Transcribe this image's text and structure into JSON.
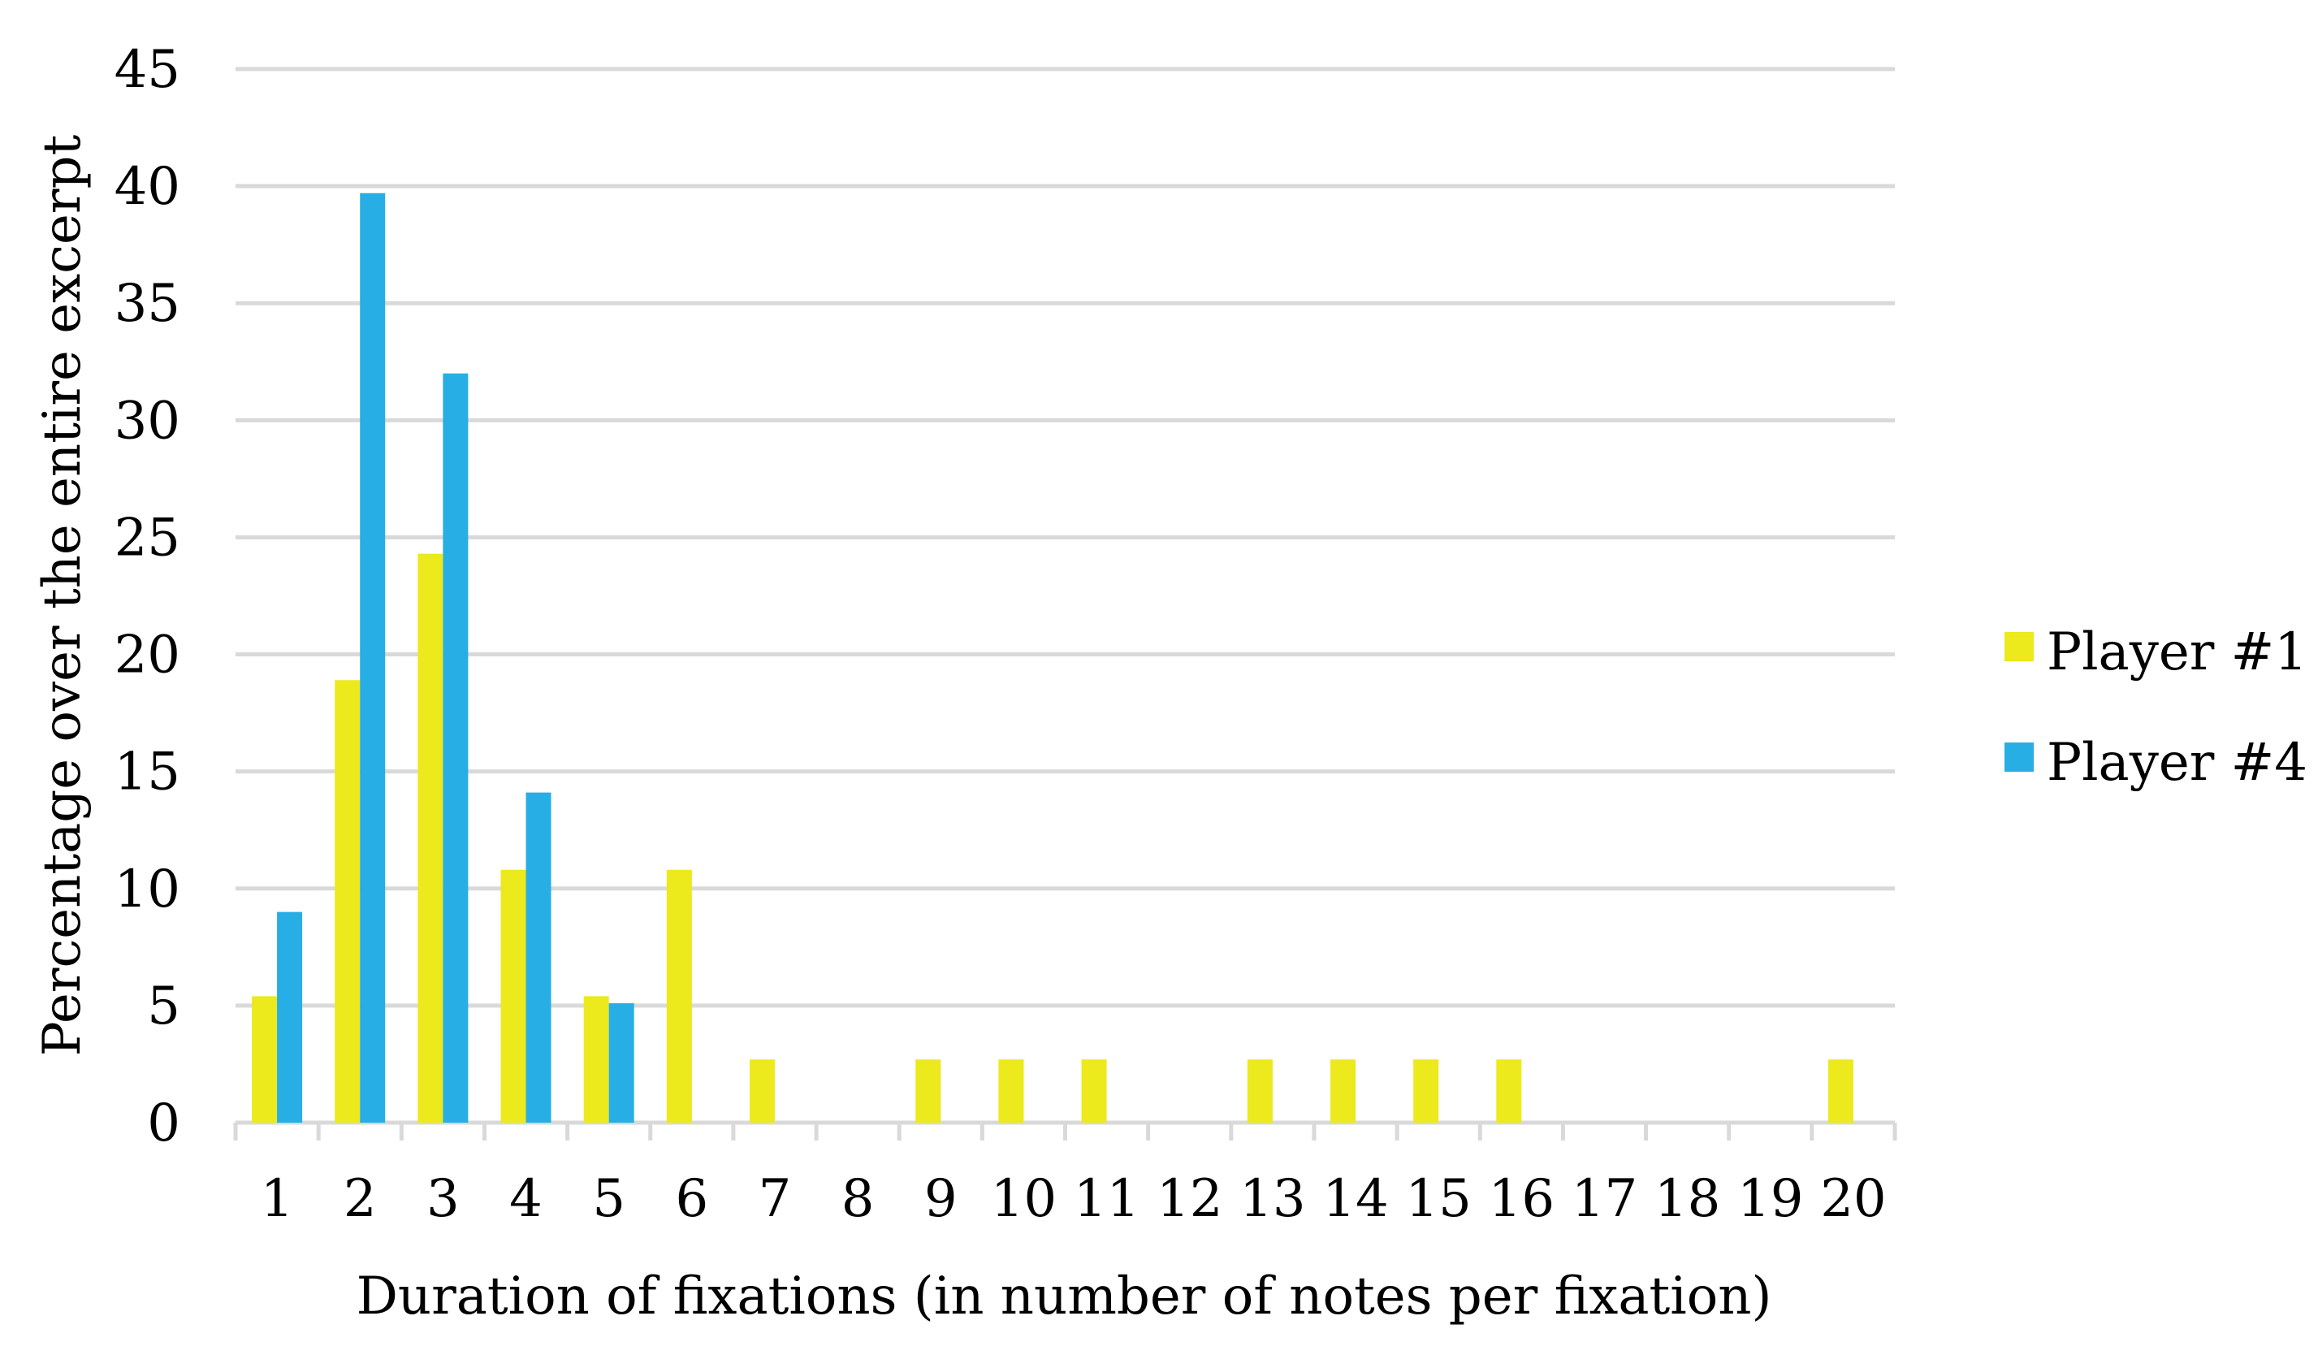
{
  "chart_data": {
    "type": "bar",
    "title": "",
    "xlabel": "Duration of fixations (in number of notes per fixation)",
    "ylabel": "Percentage over the entire excerpt",
    "categories": [
      "1",
      "2",
      "3",
      "4",
      "5",
      "6",
      "7",
      "8",
      "9",
      "10",
      "11",
      "12",
      "13",
      "14",
      "15",
      "16",
      "17",
      "18",
      "19",
      "20"
    ],
    "ylim": [
      0,
      45
    ],
    "yticks": [
      "0",
      "5",
      "10",
      "15",
      "20",
      "25",
      "30",
      "35",
      "40",
      "45"
    ],
    "grid": true,
    "legend_position": "right",
    "series": [
      {
        "name": "Player #1",
        "color": "#ece91d",
        "values": [
          5.4,
          18.9,
          24.3,
          10.8,
          5.4,
          10.8,
          2.7,
          0,
          2.7,
          2.7,
          2.7,
          0,
          2.7,
          2.7,
          2.7,
          2.7,
          0,
          0,
          0,
          2.7
        ]
      },
      {
        "name": "Player #4",
        "color": "#27aee4",
        "values": [
          9.0,
          39.7,
          32.0,
          14.1,
          5.1,
          0,
          0,
          0,
          0,
          0,
          0,
          0,
          0,
          0,
          0,
          0,
          0,
          0,
          0,
          0
        ]
      }
    ]
  }
}
